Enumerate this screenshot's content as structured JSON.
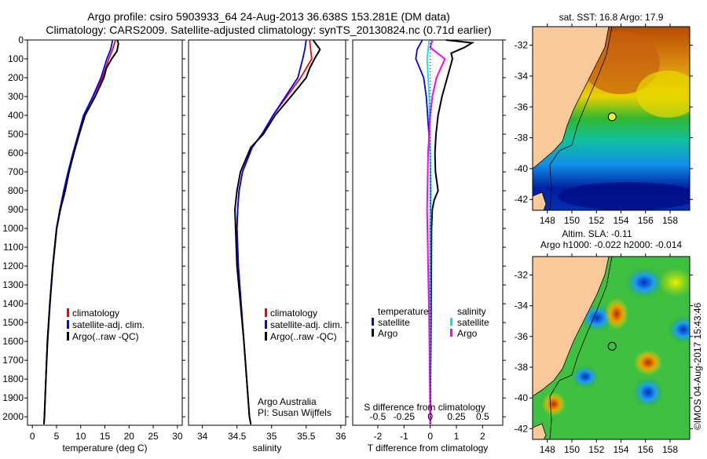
{
  "title_line1": "Argo profile: csiro 5903933_64 24-Aug-2013 36.638S 153.281E (DM data)",
  "title_line2": "Climatology: CARS2009. Satellite-adjusted climatology: synTS_20130824.nc (0.71d earlier)",
  "credit": "©IMOS 04-Aug-2017 15:43:46",
  "colors": {
    "climatology": "#ff0000",
    "satellite_adj": "#0000ff",
    "argo": "#000000",
    "s_satellite": "#00e5ee",
    "s_argo": "#ff00ff",
    "land": "#f9c99a"
  },
  "chart_data": [
    {
      "type": "line",
      "name": "temperature",
      "xlabel": "temperature (deg C)",
      "xlim": [
        -1,
        31
      ],
      "ylim": [
        2045,
        0
      ],
      "xticks": [
        0,
        5,
        10,
        15,
        20,
        25,
        30
      ],
      "yticks": [
        0,
        100,
        200,
        300,
        400,
        500,
        600,
        700,
        800,
        900,
        1000,
        1100,
        1200,
        1300,
        1400,
        1500,
        1600,
        1700,
        1800,
        1900,
        2000
      ],
      "legend": [
        "climatology",
        "satellite-adj. clim.",
        "Argo(..raw -QC)"
      ],
      "series": [
        {
          "name": "climatology",
          "depth": [
            0,
            50,
            100,
            200,
            300,
            400,
            500,
            600,
            700,
            800,
            900,
            1000,
            1200,
            1400,
            1600,
            1800,
            2000,
            2040
          ],
          "values": [
            17.2,
            16.6,
            15.8,
            14.5,
            12.6,
            10.6,
            9.5,
            8.4,
            7.4,
            6.5,
            5.7,
            5.0,
            4.2,
            3.6,
            3.1,
            2.8,
            2.5,
            2.4
          ]
        },
        {
          "name": "satellite-adj. clim.",
          "depth": [
            0,
            50,
            100,
            200,
            300,
            400,
            500,
            600,
            700,
            800,
            900,
            1000,
            1200,
            1400,
            1600,
            1800,
            2000,
            2040
          ],
          "values": [
            16.6,
            16.2,
            15.4,
            14.2,
            12.5,
            10.6,
            9.5,
            8.4,
            7.4,
            6.5,
            5.7,
            5.0,
            4.2,
            3.6,
            3.1,
            2.8,
            2.5,
            2.4
          ]
        },
        {
          "name": "Argo(..raw -QC)",
          "depth": [
            0,
            20,
            60,
            100,
            150,
            200,
            300,
            400,
            500,
            600,
            700,
            800,
            900,
            1000,
            1200,
            1400,
            1600,
            1800,
            2000,
            2040
          ],
          "values": [
            17.6,
            17.8,
            17.5,
            16.4,
            15.3,
            14.8,
            13.0,
            10.9,
            9.7,
            8.6,
            7.6,
            6.8,
            5.8,
            5.05,
            4.25,
            3.65,
            3.15,
            2.8,
            2.5,
            2.4
          ]
        }
      ]
    },
    {
      "type": "line",
      "name": "salinity",
      "xlabel": "salinity",
      "xlim": [
        33.8,
        36.07
      ],
      "ylim": [
        2045,
        0
      ],
      "xticks": [
        34,
        34.5,
        35,
        35.5,
        36
      ],
      "legend": [
        "climatology",
        "satellite-adj. clim.",
        "Argo(..raw -QC)"
      ],
      "annotation": [
        "Argo Australia",
        "PI: Susan Wijffels"
      ],
      "series": [
        {
          "name": "climatology",
          "depth": [
            0,
            100,
            200,
            300,
            400,
            500,
            570,
            700,
            800,
            900,
            1000,
            1200,
            1400,
            1600,
            1800,
            2000,
            2040
          ],
          "values": [
            35.55,
            35.58,
            35.42,
            35.22,
            35.02,
            34.86,
            34.72,
            34.58,
            34.53,
            34.51,
            34.5,
            34.52,
            34.56,
            34.6,
            34.64,
            34.68,
            34.7
          ]
        },
        {
          "name": "satellite-adj. clim.",
          "depth": [
            0,
            50,
            100,
            200,
            300,
            400,
            500,
            570,
            700,
            800,
            900,
            1000,
            1200,
            1400,
            1600,
            1800,
            2000,
            2040
          ],
          "values": [
            35.5,
            35.48,
            35.45,
            35.38,
            35.2,
            35.02,
            34.86,
            34.72,
            34.58,
            34.53,
            34.51,
            34.5,
            34.52,
            34.56,
            34.6,
            34.64,
            34.68,
            34.7
          ]
        },
        {
          "name": "Argo(..raw -QC)",
          "depth": [
            0,
            50,
            100,
            150,
            200,
            300,
            400,
            500,
            570,
            700,
            800,
            900,
            1000,
            1200,
            1400,
            1600,
            1800,
            2000,
            2040
          ],
          "values": [
            35.6,
            35.7,
            35.62,
            35.55,
            35.5,
            35.28,
            35.05,
            34.88,
            34.7,
            34.55,
            34.5,
            34.47,
            34.48,
            34.5,
            34.55,
            34.6,
            34.64,
            34.68,
            34.7
          ]
        }
      ]
    },
    {
      "type": "line",
      "name": "difference",
      "xlabel": "T difference from climatology",
      "xlabel2": "S difference from climatology",
      "xlim": [
        -2.96,
        2.77
      ],
      "ylim": [
        2045,
        0
      ],
      "xticks": [
        -2,
        -1,
        0,
        1,
        2
      ],
      "s_xticks": [
        "-0.5",
        "-0.25",
        "0",
        "0.25",
        "0.5"
      ],
      "legend_t_title": "temperature",
      "legend_s_title": "salinity",
      "legend_t": [
        "satellite",
        "Argo"
      ],
      "legend_s": [
        "satellite",
        "Argo"
      ],
      "series": [
        {
          "name": "T satellite",
          "units": "T",
          "depth": [
            0,
            50,
            100,
            200,
            300,
            400,
            600,
            800,
            1000,
            2040
          ],
          "values": [
            -0.3,
            -0.5,
            -0.55,
            -0.25,
            -0.15,
            -0.1,
            0,
            0.02,
            0,
            0
          ]
        },
        {
          "name": "T Argo",
          "units": "T",
          "depth": [
            0,
            15,
            40,
            70,
            100,
            150,
            200,
            250,
            300,
            400,
            500,
            600,
            700,
            800,
            850,
            900,
            1000,
            1500,
            2000,
            2040
          ],
          "values": [
            0.6,
            1.6,
            1.3,
            0.8,
            0.85,
            0.75,
            0.65,
            0.55,
            0.45,
            0.3,
            0.22,
            0.18,
            0.2,
            0.3,
            0.15,
            0.08,
            0.05,
            0.03,
            0.0,
            0.0
          ]
        },
        {
          "name": "S satellite",
          "units": "S",
          "depth": [
            0,
            50,
            100,
            300,
            600,
            1000,
            2040
          ],
          "values": [
            -0.01,
            -0.02,
            -0.03,
            -0.01,
            0,
            0,
            0
          ]
        },
        {
          "name": "S Argo",
          "units": "S",
          "depth": [
            0,
            40,
            100,
            150,
            200,
            300,
            400,
            600,
            900,
            1200,
            1500,
            2000,
            2040
          ],
          "values": [
            0.02,
            0.0,
            0.14,
            0.1,
            0.06,
            0.02,
            0.0,
            -0.02,
            -0.03,
            -0.02,
            -0.01,
            0.0,
            0.0
          ]
        }
      ]
    },
    {
      "type": "heatmap",
      "name": "sst-map",
      "title": "sat. SST: 16.8 Argo: 17.9",
      "xlim": [
        146.8,
        159.6
      ],
      "ylim": [
        -42.7,
        -30.8
      ],
      "xticks": [
        148,
        150,
        152,
        154,
        156,
        158
      ],
      "yticks": [
        -32,
        -34,
        -36,
        -38,
        -40,
        -42
      ],
      "argo_position": [
        153.281,
        -36.638
      ]
    },
    {
      "type": "heatmap",
      "name": "sla-map",
      "title1": "Altim. SLA: -0.11",
      "title2": "Argo h1000: -0.022 h2000: -0.014",
      "xlim": [
        146.8,
        159.6
      ],
      "ylim": [
        -42.7,
        -30.8
      ],
      "xticks": [
        148,
        150,
        152,
        154,
        156,
        158
      ],
      "yticks": [
        -32,
        -34,
        -36,
        -38,
        -40,
        -42
      ],
      "argo_position": [
        153.281,
        -36.638
      ]
    }
  ]
}
